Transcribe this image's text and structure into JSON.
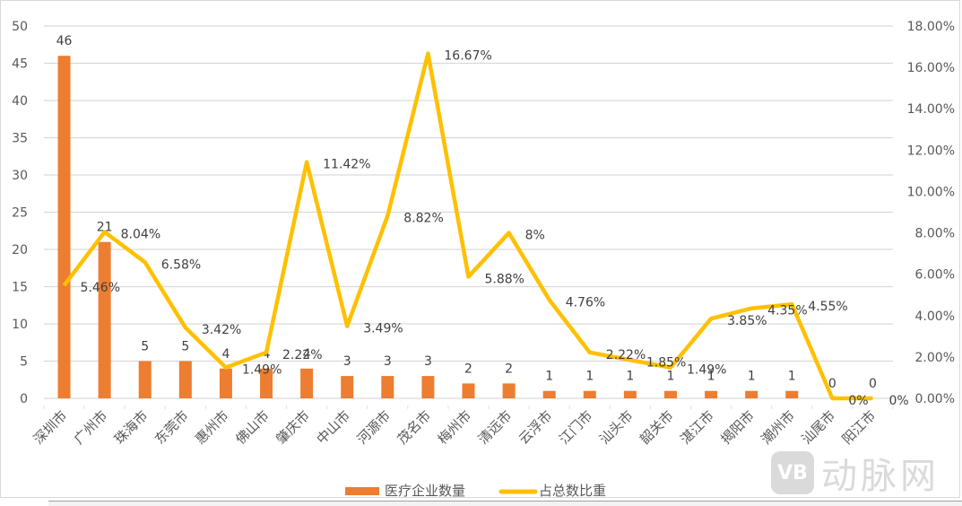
{
  "chart_data": {
    "type": "bar+line",
    "title": "",
    "categories": [
      "深圳市",
      "广州市",
      "珠海市",
      "东莞市",
      "惠州市",
      "佛山市",
      "肇庆市",
      "中山市",
      "河源市",
      "茂名市",
      "梅州市",
      "清远市",
      "云浮市",
      "江门市",
      "汕头市",
      "韶关市",
      "湛江市",
      "揭阳市",
      "潮州市",
      "汕尾市",
      "阳江市"
    ],
    "series": [
      {
        "name": "医疗企业数量",
        "type": "bar",
        "axis": "left",
        "color": "#ED7D31",
        "values": [
          46,
          21,
          5,
          5,
          4,
          4,
          4,
          3,
          3,
          3,
          2,
          2,
          1,
          1,
          1,
          1,
          1,
          1,
          1,
          0,
          0
        ],
        "labels": [
          "46",
          "21",
          "5",
          "5",
          "4",
          "4",
          "4",
          "3",
          "3",
          "3",
          "2",
          "2",
          "1",
          "1",
          "1",
          "1",
          "1",
          "1",
          "1",
          "0",
          "0"
        ]
      },
      {
        "name": "占总数比重",
        "type": "line",
        "axis": "right",
        "color": "#FFC000",
        "values": [
          5.46,
          8.04,
          6.58,
          3.42,
          1.49,
          2.22,
          11.42,
          3.49,
          8.82,
          16.67,
          5.88,
          8.0,
          4.76,
          2.22,
          1.85,
          1.49,
          3.85,
          4.35,
          4.55,
          0,
          0
        ],
        "labels": [
          "5.46%",
          "8.04%",
          "6.58%",
          "3.42%",
          "1.49%",
          "2.22%",
          "11.42%",
          "3.49%",
          "8.82%",
          "16.67%",
          "5.88%",
          "8%",
          "4.76%",
          "2.22%",
          "1.85%",
          "1.49%",
          "3.85%",
          "4.35%",
          "4.55%",
          "0%",
          "0%"
        ]
      }
    ],
    "left_axis": {
      "ylim": [
        0,
        50
      ],
      "ticks": [
        "0",
        "5",
        "10",
        "15",
        "20",
        "25",
        "30",
        "35",
        "40",
        "45",
        "50"
      ]
    },
    "right_axis": {
      "ylim": [
        0,
        18
      ],
      "ticks": [
        "0.00%",
        "2.00%",
        "4.00%",
        "6.00%",
        "8.00%",
        "10.00%",
        "12.00%",
        "14.00%",
        "16.00%",
        "18.00%"
      ]
    },
    "xlabel": "",
    "ylabel": "",
    "grid": true,
    "legend_position": "bottom"
  },
  "legend": {
    "bar_label": "医疗企业数量",
    "line_label": "占总数比重"
  },
  "watermark": {
    "badge": "VB",
    "text": "动脉网"
  }
}
